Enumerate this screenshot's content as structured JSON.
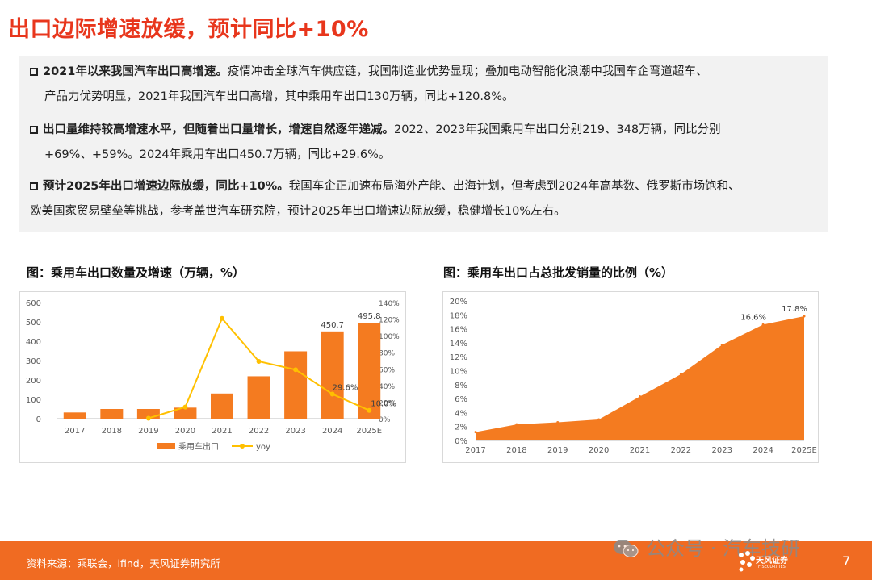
{
  "page": {
    "title": "出口边际增速放缓，预计同比+10%",
    "page_number": "7"
  },
  "summary": [
    {
      "bold": "2021年以来我国汽车出口高增速。",
      "text": "疫情冲击全球汽车供应链，我国制造业优势显现；叠加电动智能化浪潮中我国车企弯道超车、",
      "text2": "产品力优势明显，2021年我国汽车出口高增，其中乘用车出口130万辆，同比+120.8%。"
    },
    {
      "bold": "出口量维持较高增速水平，但随着出口量增长，增速自然逐年递减。",
      "text": "2022、2023年我国乘用车出口分别219、348万辆，同比分别",
      "text2": "+69%、+59%。2024年乘用车出口450.7万辆，同比+29.6%。"
    },
    {
      "bold": "预计2025年出口增速边际放缓，同比+10%。",
      "text": "我国车企正加速布局海外产能、出海计划，但考虑到2024年高基数、俄罗斯市场饱和、",
      "text2": "欧美国家贸易壁垒等挑战，参考盖世汽车研究院，预计2025年出口增速边际放缓，稳健增长10%左右。"
    }
  ],
  "chart_titles": {
    "left": "图：乘用车出口数量及增速（万辆，%）",
    "right": "图：乘用车出口占总批发销量的比例（%）"
  },
  "chart_data": [
    {
      "type": "bar",
      "categories": [
        "2017",
        "2018",
        "2019",
        "2020",
        "2021",
        "2022",
        "2023",
        "2024",
        "2025E"
      ],
      "series": [
        {
          "name": "乘用车出口",
          "type": "bar",
          "axis": "left",
          "values": [
            32,
            50,
            50,
            57,
            130,
            219,
            348,
            450.7,
            495.8
          ],
          "color": "#f47b20"
        },
        {
          "name": "yoy",
          "type": "line",
          "axis": "right",
          "values": [
            null,
            null,
            0.5,
            14,
            120.8,
            69,
            59,
            29.6,
            10.0
          ],
          "color": "#ffc000"
        }
      ],
      "data_labels": [
        {
          "series": "乘用车出口",
          "index": 7,
          "text": "450.7"
        },
        {
          "series": "乘用车出口",
          "index": 8,
          "text": "495.8"
        },
        {
          "series": "yoy",
          "index": 7,
          "text": "29.6%"
        },
        {
          "series": "yoy",
          "index": 8,
          "text": "10.0%"
        }
      ],
      "y_left": {
        "range": [
          0,
          600
        ],
        "ticks": [
          "0",
          "100",
          "200",
          "300",
          "400",
          "500",
          "600"
        ]
      },
      "y_right": {
        "range": [
          0,
          140
        ],
        "ticks": [
          "0%",
          "20%",
          "40%",
          "60%",
          "80%",
          "100%",
          "120%",
          "140%"
        ]
      },
      "legend": {
        "placement": "bottom",
        "items": [
          "乘用车出口",
          "yoy"
        ]
      },
      "grid": false
    },
    {
      "type": "area",
      "categories": [
        "2017",
        "2018",
        "2019",
        "2020",
        "2021",
        "2022",
        "2023",
        "2024",
        "2025E"
      ],
      "series": [
        {
          "values": [
            1.2,
            2.3,
            2.6,
            3.0,
            6.3,
            9.5,
            13.7,
            16.6,
            17.8
          ],
          "color": "#f47b20"
        }
      ],
      "data_labels": [
        {
          "index": 7,
          "text": "16.6%"
        },
        {
          "index": 8,
          "text": "17.8%"
        }
      ],
      "y": {
        "range": [
          0,
          20
        ],
        "ticks": [
          "0%",
          "2%",
          "4%",
          "6%",
          "8%",
          "10%",
          "12%",
          "14%",
          "16%",
          "18%",
          "20%"
        ]
      },
      "grid": false
    }
  ],
  "footer": {
    "source": "资料来源：乘联会，ifind，天风证券研究所",
    "watermark": "公众号 · 汽车技研",
    "brand_name": "天风证券",
    "brand_sub": "TF SECURITIES"
  },
  "colors": {
    "title": "#e8361c",
    "accent": "#f47b20",
    "line": "#ffc000",
    "footer": "#f06b22"
  },
  "icons": [
    "checkbox-icon",
    "wechat-icon",
    "tf-logo-icon"
  ]
}
